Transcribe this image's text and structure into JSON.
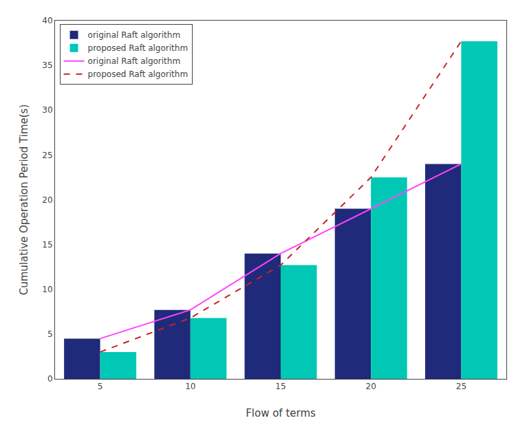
{
  "chart_data": {
    "type": "bar",
    "xlabel": "Flow of terms",
    "ylabel": "Cumulative Operation Period Time(s)",
    "x": [
      5,
      10,
      15,
      20,
      25
    ],
    "series": [
      {
        "name": "original Raft algorithm",
        "type": "bar",
        "color": "#1f2a7a",
        "values": [
          4.5,
          7.7,
          14.0,
          19.0,
          24.0
        ]
      },
      {
        "name": "proposed Raft algorithm",
        "type": "bar",
        "color": "#00c8b4",
        "values": [
          3.0,
          6.8,
          12.7,
          22.5,
          37.7
        ]
      },
      {
        "name": "original Raft algorithm",
        "type": "line",
        "line_style": "solid",
        "color": "#ff44ff",
        "values": [
          4.5,
          7.7,
          14.0,
          19.0,
          24.0
        ]
      },
      {
        "name": "proposed Raft algorithm",
        "type": "line",
        "line_style": "dashed",
        "color": "#cc2222",
        "values": [
          3.0,
          6.8,
          12.7,
          22.5,
          37.7
        ]
      }
    ],
    "xlim": [
      2.5,
      27.5
    ],
    "xticks": [
      5,
      10,
      15,
      20,
      25
    ],
    "ylim": [
      0,
      40
    ],
    "yticks": [
      0,
      5,
      10,
      15,
      20,
      25,
      30,
      35,
      40
    ],
    "grid": false,
    "legend": "upper left"
  }
}
